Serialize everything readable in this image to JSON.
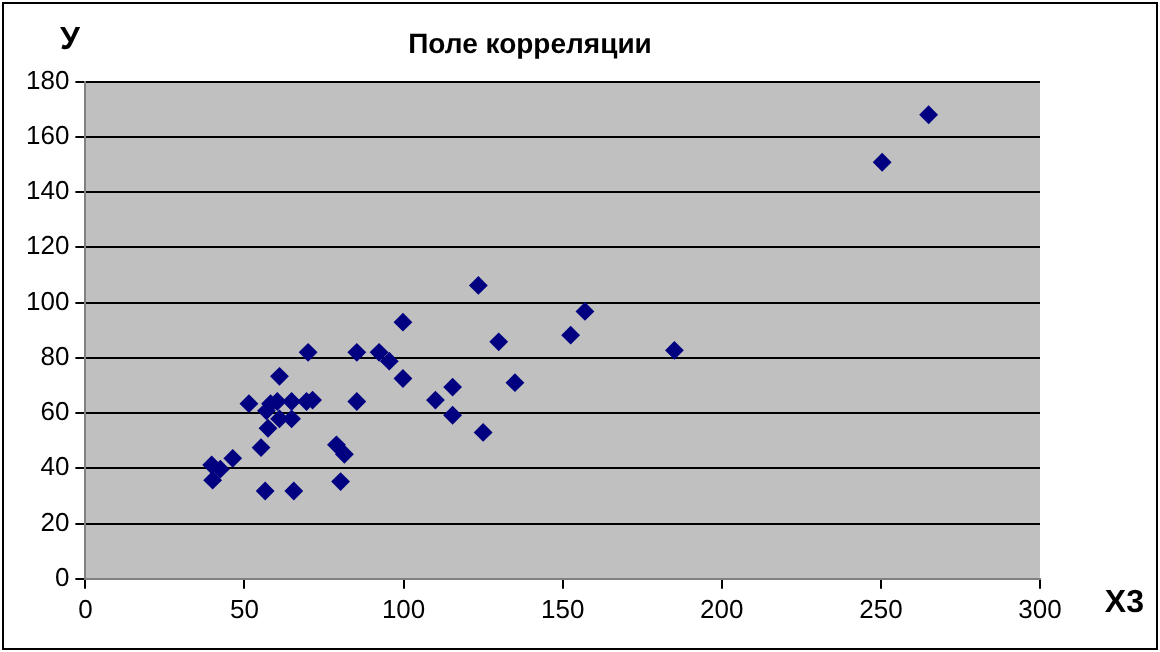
{
  "chart_data": {
    "type": "scatter",
    "title": "Поле корреляции",
    "xlabel": "X3",
    "ylabel": "У",
    "x": [
      39.7,
      40,
      42.4,
      46.3,
      51.4,
      55.2,
      56.5,
      56.9,
      57.4,
      58.2,
      60.3,
      61,
      61,
      64.8,
      64.8,
      65.5,
      69.5,
      70,
      71.4,
      78.9,
      80.2,
      81.4,
      85.3,
      85.3,
      92.3,
      95.5,
      99.8,
      99.8,
      110,
      115.4,
      115.4,
      123.5,
      125,
      129.9,
      135,
      152.5,
      157,
      185.1,
      250.4,
      265
    ],
    "series": [
      {
        "color": "#000080",
        "values": [
          41.2,
          35.7,
          39.7,
          43.6,
          63.4,
          47.5,
          31.8,
          60.8,
          54.5,
          63.4,
          64.2,
          73.3,
          57.9,
          64.2,
          57.9,
          31.8,
          64.2,
          82,
          64.7,
          48.5,
          35.2,
          45.1,
          82,
          64.2,
          82,
          78.8,
          92.9,
          72.5,
          64.7,
          69.4,
          59.2,
          106.2,
          53,
          85.8,
          71,
          88.2,
          96.8,
          82.7,
          150.8,
          168
        ]
      }
    ],
    "xlim": [
      0,
      300
    ],
    "xticks": [
      0,
      50,
      100,
      150,
      200,
      250,
      300
    ],
    "ylim": [
      0,
      180
    ],
    "yticks": [
      0,
      20,
      40,
      60,
      80,
      100,
      120,
      140,
      160,
      180
    ],
    "grid": "y",
    "legend": false,
    "marker": "diamond"
  }
}
